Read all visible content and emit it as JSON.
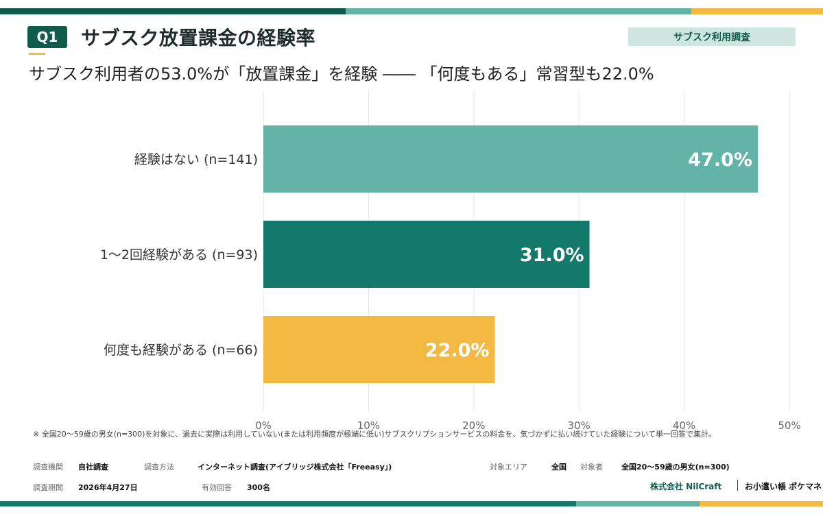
{
  "header": {
    "badge": "Q1",
    "title": "サブスク放置課金の経験率",
    "tag": "サブスク利用調査",
    "subtitle": "サブスク利用者の53.0%が「放置課金」を経験 ―― 「何度もある」常習型も22.0%"
  },
  "colors": {
    "dark_green": "#0f5c4c",
    "teal": "#12796b",
    "light_teal": "#63b3a7",
    "amber": "#f4b942",
    "grid": "#e6e6e6"
  },
  "chart_data": {
    "type": "bar",
    "orientation": "horizontal",
    "categories": [
      "経験はない (n=141)",
      "1〜2回経験がある (n=93)",
      "何度も経験がある (n=66)"
    ],
    "values": [
      47.0,
      31.0,
      22.0
    ],
    "value_labels": [
      "47.0%",
      "31.0%",
      "22.0%"
    ],
    "bar_colors": [
      "#63b3a7",
      "#12796b",
      "#f4b942"
    ],
    "xlim": [
      0,
      50
    ],
    "xticks": [
      0,
      10,
      20,
      30,
      40,
      50
    ],
    "xtick_labels": [
      "0%",
      "10%",
      "20%",
      "30%",
      "40%",
      "50%"
    ],
    "grid": true,
    "title": "",
    "xlabel": "",
    "ylabel": ""
  },
  "footnote": "※ 全国20〜59歳の男女(n=300)を対象に、過去に実際は利用していない(または利用頻度が極端に低い)サブスクリプションサービスの料金を、気づかずに払い続けていた経験について単一回答で集計。",
  "meta": {
    "org_label": "調査機関",
    "org_value": "自社調査",
    "method_label": "調査方法",
    "method_value": "インターネット調査(アイブリッジ株式会社「Freeasy」)",
    "area_label": "対象エリア",
    "area_value": "全国",
    "target_label": "対象者",
    "target_value": "全国20〜59歳の男女(n=300)",
    "period_label": "調査期間",
    "period_value": "2026年4月27日",
    "responses_label": "有効回答",
    "responses_value": "300名"
  },
  "brand": {
    "company": "株式会社 NilCraft",
    "service": "お小遣い帳 ポケマネ"
  }
}
